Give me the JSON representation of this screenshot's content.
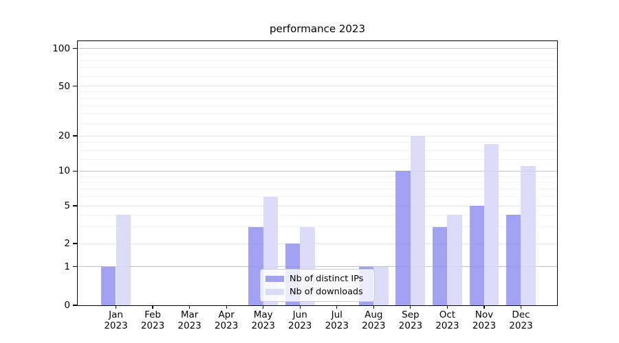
{
  "title": "performance 2023",
  "chart_data": {
    "type": "bar",
    "title": "performance 2023",
    "categories": [
      "Jan 2023",
      "Feb 2023",
      "Mar 2023",
      "Apr 2023",
      "May 2023",
      "Jun 2023",
      "Jul 2023",
      "Aug 2023",
      "Sep 2023",
      "Oct 2023",
      "Nov 2023",
      "Dec 2023"
    ],
    "month_labels": [
      "Jan",
      "Feb",
      "Mar",
      "Apr",
      "May",
      "Jun",
      "Jul",
      "Aug",
      "Sep",
      "Oct",
      "Nov",
      "Dec"
    ],
    "year_label": "2023",
    "series": [
      {
        "name": "Nb of distinct IPs",
        "color": "rgba(146,146,240,0.85)",
        "values": [
          1,
          0,
          0,
          0,
          3,
          2,
          0,
          1,
          10,
          3,
          5,
          4
        ]
      },
      {
        "name": "Nb of downloads",
        "color": "rgba(214,214,247,0.85)",
        "values": [
          4,
          0,
          0,
          0,
          6,
          3,
          0,
          1,
          20,
          4,
          17,
          11
        ]
      }
    ],
    "xlabel": "",
    "ylabel": "",
    "yscale": "symlog",
    "ylim": [
      0,
      110
    ],
    "yticks_major": [
      0,
      1,
      2,
      5,
      10,
      20,
      50,
      100
    ],
    "yticks_minor": [
      3,
      4,
      6,
      7,
      8,
      9,
      12.5,
      15,
      17.5,
      25,
      30,
      35,
      40,
      45,
      60,
      70,
      80,
      90
    ],
    "grid": "horizontal major+minor",
    "legend_position": "lower center inside"
  },
  "legend": {
    "items": [
      {
        "label": "Nb of distinct IPs"
      },
      {
        "label": "Nb of downloads"
      }
    ]
  },
  "colors": {
    "bar_distinct_ips": "rgba(146,146,240,0.85)",
    "bar_downloads": "rgba(214,214,247,0.85)",
    "grid_decade": "#c3c3c3",
    "grid_major": "#e6e6e6",
    "grid_minor": "#f2f2f2",
    "spine": "#000000",
    "background": "#ffffff",
    "text": "#000000"
  }
}
